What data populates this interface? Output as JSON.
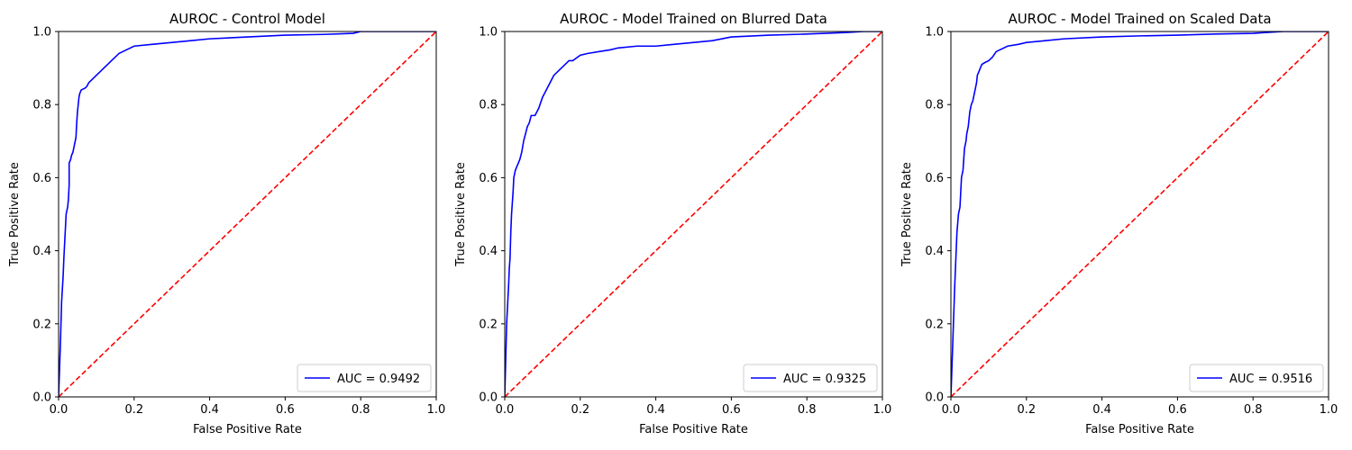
{
  "chart_data": [
    {
      "type": "line",
      "title": "AUROC - Control Model",
      "xlabel": "False Positive Rate",
      "ylabel": "True Positive Rate",
      "xlim": [
        0,
        1
      ],
      "ylim": [
        0,
        1
      ],
      "xticks": [
        "0.0",
        "0.2",
        "0.4",
        "0.6",
        "0.8",
        "1.0"
      ],
      "yticks": [
        "0.0",
        "0.2",
        "0.4",
        "0.6",
        "0.8",
        "1.0"
      ],
      "grid": false,
      "legend_position": "lower-right",
      "series": [
        {
          "name": "AUC = 0.9492",
          "color": "#0000ff",
          "style": "solid",
          "points": [
            [
              0,
              0
            ],
            [
              0.005,
              0.15
            ],
            [
              0.008,
              0.26
            ],
            [
              0.012,
              0.33
            ],
            [
              0.014,
              0.38
            ],
            [
              0.016,
              0.42
            ],
            [
              0.018,
              0.46
            ],
            [
              0.02,
              0.5
            ],
            [
              0.024,
              0.52
            ],
            [
              0.026,
              0.54
            ],
            [
              0.028,
              0.58
            ],
            [
              0.028,
              0.64
            ],
            [
              0.032,
              0.65
            ],
            [
              0.034,
              0.66
            ],
            [
              0.038,
              0.67
            ],
            [
              0.04,
              0.68
            ],
            [
              0.044,
              0.7
            ],
            [
              0.046,
              0.71
            ],
            [
              0.048,
              0.75
            ],
            [
              0.05,
              0.78
            ],
            [
              0.052,
              0.8
            ],
            [
              0.054,
              0.82
            ],
            [
              0.056,
              0.83
            ],
            [
              0.06,
              0.84
            ],
            [
              0.07,
              0.845
            ],
            [
              0.075,
              0.85
            ],
            [
              0.08,
              0.86
            ],
            [
              0.09,
              0.87
            ],
            [
              0.1,
              0.88
            ],
            [
              0.11,
              0.89
            ],
            [
              0.12,
              0.9
            ],
            [
              0.13,
              0.91
            ],
            [
              0.14,
              0.92
            ],
            [
              0.15,
              0.93
            ],
            [
              0.16,
              0.94
            ],
            [
              0.18,
              0.95
            ],
            [
              0.2,
              0.96
            ],
            [
              0.25,
              0.965
            ],
            [
              0.3,
              0.97
            ],
            [
              0.35,
              0.975
            ],
            [
              0.4,
              0.98
            ],
            [
              0.5,
              0.985
            ],
            [
              0.6,
              0.99
            ],
            [
              0.7,
              0.992
            ],
            [
              0.78,
              0.995
            ],
            [
              0.8,
              1.0
            ],
            [
              1.0,
              1.0
            ]
          ]
        },
        {
          "name": "",
          "color": "#ff0000",
          "style": "dashed",
          "points": [
            [
              0,
              0
            ],
            [
              1,
              1
            ]
          ]
        }
      ]
    },
    {
      "type": "line",
      "title": "AUROC - Model Trained on Blurred Data",
      "xlabel": "False Positive Rate",
      "ylabel": "True Positive Rate",
      "xlim": [
        0,
        1
      ],
      "ylim": [
        0,
        1
      ],
      "xticks": [
        "0.0",
        "0.2",
        "0.4",
        "0.6",
        "0.8",
        "1.0"
      ],
      "yticks": [
        "0.0",
        "0.2",
        "0.4",
        "0.6",
        "0.8",
        "1.0"
      ],
      "grid": false,
      "legend_position": "lower-right",
      "series": [
        {
          "name": "AUC = 0.9325",
          "color": "#0000ff",
          "style": "solid",
          "points": [
            [
              0,
              0
            ],
            [
              0.005,
              0.2
            ],
            [
              0.01,
              0.3
            ],
            [
              0.012,
              0.35
            ],
            [
              0.014,
              0.38
            ],
            [
              0.016,
              0.45
            ],
            [
              0.018,
              0.5
            ],
            [
              0.022,
              0.56
            ],
            [
              0.024,
              0.6
            ],
            [
              0.028,
              0.62
            ],
            [
              0.032,
              0.63
            ],
            [
              0.036,
              0.64
            ],
            [
              0.04,
              0.65
            ],
            [
              0.045,
              0.67
            ],
            [
              0.05,
              0.7
            ],
            [
              0.055,
              0.72
            ],
            [
              0.06,
              0.74
            ],
            [
              0.065,
              0.75
            ],
            [
              0.07,
              0.77
            ],
            [
              0.08,
              0.77
            ],
            [
              0.09,
              0.79
            ],
            [
              0.1,
              0.82
            ],
            [
              0.11,
              0.84
            ],
            [
              0.12,
              0.86
            ],
            [
              0.13,
              0.88
            ],
            [
              0.14,
              0.89
            ],
            [
              0.15,
              0.9
            ],
            [
              0.16,
              0.91
            ],
            [
              0.17,
              0.92
            ],
            [
              0.18,
              0.92
            ],
            [
              0.2,
              0.935
            ],
            [
              0.22,
              0.94
            ],
            [
              0.25,
              0.945
            ],
            [
              0.28,
              0.95
            ],
            [
              0.3,
              0.955
            ],
            [
              0.35,
              0.96
            ],
            [
              0.4,
              0.96
            ],
            [
              0.45,
              0.965
            ],
            [
              0.5,
              0.97
            ],
            [
              0.55,
              0.975
            ],
            [
              0.6,
              0.985
            ],
            [
              0.7,
              0.99
            ],
            [
              0.8,
              0.993
            ],
            [
              0.9,
              0.997
            ],
            [
              0.95,
              1.0
            ],
            [
              1.0,
              1.0
            ]
          ]
        },
        {
          "name": "",
          "color": "#ff0000",
          "style": "dashed",
          "points": [
            [
              0,
              0
            ],
            [
              1,
              1
            ]
          ]
        }
      ]
    },
    {
      "type": "line",
      "title": "AUROC - Model Trained on Scaled Data",
      "xlabel": "False Positive Rate",
      "ylabel": "True Positive Rate",
      "xlim": [
        0,
        1
      ],
      "ylim": [
        0,
        1
      ],
      "xticks": [
        "0.0",
        "0.2",
        "0.4",
        "0.6",
        "0.8",
        "1.0"
      ],
      "yticks": [
        "0.0",
        "0.2",
        "0.4",
        "0.6",
        "0.8",
        "1.0"
      ],
      "grid": false,
      "legend_position": "lower-right",
      "series": [
        {
          "name": "AUC = 0.9516",
          "color": "#0000ff",
          "style": "solid",
          "points": [
            [
              0,
              0
            ],
            [
              0.005,
              0.15
            ],
            [
              0.01,
              0.3
            ],
            [
              0.016,
              0.45
            ],
            [
              0.02,
              0.5
            ],
            [
              0.024,
              0.52
            ],
            [
              0.026,
              0.56
            ],
            [
              0.028,
              0.6
            ],
            [
              0.032,
              0.62
            ],
            [
              0.034,
              0.65
            ],
            [
              0.036,
              0.68
            ],
            [
              0.04,
              0.7
            ],
            [
              0.042,
              0.72
            ],
            [
              0.046,
              0.74
            ],
            [
              0.05,
              0.78
            ],
            [
              0.054,
              0.8
            ],
            [
              0.058,
              0.81
            ],
            [
              0.06,
              0.82
            ],
            [
              0.064,
              0.84
            ],
            [
              0.068,
              0.86
            ],
            [
              0.07,
              0.88
            ],
            [
              0.074,
              0.89
            ],
            [
              0.078,
              0.9
            ],
            [
              0.082,
              0.91
            ],
            [
              0.09,
              0.915
            ],
            [
              0.1,
              0.92
            ],
            [
              0.11,
              0.93
            ],
            [
              0.12,
              0.945
            ],
            [
              0.13,
              0.95
            ],
            [
              0.15,
              0.96
            ],
            [
              0.18,
              0.965
            ],
            [
              0.2,
              0.97
            ],
            [
              0.25,
              0.975
            ],
            [
              0.3,
              0.98
            ],
            [
              0.4,
              0.985
            ],
            [
              0.5,
              0.988
            ],
            [
              0.6,
              0.99
            ],
            [
              0.7,
              0.993
            ],
            [
              0.8,
              0.995
            ],
            [
              0.88,
              1.0
            ],
            [
              1.0,
              1.0
            ]
          ]
        },
        {
          "name": "",
          "color": "#ff0000",
          "style": "dashed",
          "points": [
            [
              0,
              0
            ],
            [
              1,
              1
            ]
          ]
        }
      ]
    }
  ]
}
